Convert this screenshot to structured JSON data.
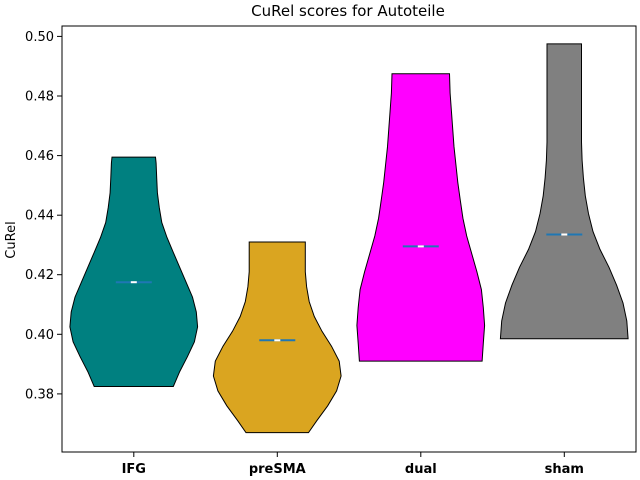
{
  "chart_data": {
    "type": "violin",
    "title": "CuRel scores for Autoteile",
    "xlabel": "",
    "ylabel": "CuRel",
    "ylim": [
      0.3605,
      0.5035
    ],
    "yticks": [
      0.38,
      0.4,
      0.42,
      0.44,
      0.46,
      0.48,
      0.5
    ],
    "ytick_labels": [
      "0.38",
      "0.40",
      "0.42",
      "0.44",
      "0.46",
      "0.48",
      "0.50"
    ],
    "categories": [
      "IFG",
      "preSMA",
      "dual",
      "sham"
    ],
    "grid": false,
    "series": [
      {
        "category": "IFG",
        "color": "#008080",
        "min": 0.3825,
        "max": 0.4595,
        "median": 0.4175,
        "profile": [
          [
            0.3825,
            0.62
          ],
          [
            0.3875,
            0.72
          ],
          [
            0.3925,
            0.84
          ],
          [
            0.3975,
            0.95
          ],
          [
            0.4025,
            1.0
          ],
          [
            0.4075,
            0.98
          ],
          [
            0.4125,
            0.92
          ],
          [
            0.4175,
            0.82
          ],
          [
            0.4225,
            0.72
          ],
          [
            0.4275,
            0.62
          ],
          [
            0.4325,
            0.52
          ],
          [
            0.4375,
            0.44
          ],
          [
            0.4425,
            0.4
          ],
          [
            0.4475,
            0.37
          ],
          [
            0.4525,
            0.36
          ],
          [
            0.4575,
            0.35
          ],
          [
            0.4595,
            0.34
          ]
        ]
      },
      {
        "category": "preSMA",
        "color": "#DAA520",
        "min": 0.367,
        "max": 0.431,
        "median": 0.398,
        "profile": [
          [
            0.367,
            0.49
          ],
          [
            0.371,
            0.62
          ],
          [
            0.376,
            0.79
          ],
          [
            0.381,
            0.93
          ],
          [
            0.386,
            1.0
          ],
          [
            0.391,
            0.97
          ],
          [
            0.396,
            0.85
          ],
          [
            0.401,
            0.7
          ],
          [
            0.406,
            0.58
          ],
          [
            0.411,
            0.5
          ],
          [
            0.416,
            0.46
          ],
          [
            0.421,
            0.44
          ],
          [
            0.426,
            0.44
          ],
          [
            0.431,
            0.44
          ]
        ]
      },
      {
        "category": "dual",
        "color": "#FF00FF",
        "min": 0.391,
        "max": 0.4875,
        "median": 0.4295,
        "profile": [
          [
            0.391,
            0.96
          ],
          [
            0.397,
            0.98
          ],
          [
            0.403,
            1.0
          ],
          [
            0.409,
            0.98
          ],
          [
            0.415,
            0.95
          ],
          [
            0.421,
            0.88
          ],
          [
            0.427,
            0.8
          ],
          [
            0.433,
            0.72
          ],
          [
            0.439,
            0.66
          ],
          [
            0.445,
            0.62
          ],
          [
            0.451,
            0.58
          ],
          [
            0.457,
            0.55
          ],
          [
            0.463,
            0.52
          ],
          [
            0.469,
            0.5
          ],
          [
            0.475,
            0.48
          ],
          [
            0.481,
            0.46
          ],
          [
            0.4875,
            0.45
          ]
        ]
      },
      {
        "category": "sham",
        "color": "#808080",
        "min": 0.3985,
        "max": 0.4975,
        "median": 0.4335,
        "profile": [
          [
            0.3985,
            1.0
          ],
          [
            0.4045,
            0.98
          ],
          [
            0.4105,
            0.92
          ],
          [
            0.4165,
            0.82
          ],
          [
            0.4225,
            0.7
          ],
          [
            0.4285,
            0.56
          ],
          [
            0.4345,
            0.45
          ],
          [
            0.4405,
            0.38
          ],
          [
            0.4465,
            0.33
          ],
          [
            0.4525,
            0.3
          ],
          [
            0.4585,
            0.28
          ],
          [
            0.4645,
            0.27
          ],
          [
            0.4705,
            0.27
          ],
          [
            0.4765,
            0.27
          ],
          [
            0.4825,
            0.27
          ],
          [
            0.4885,
            0.27
          ],
          [
            0.4945,
            0.27
          ],
          [
            0.4975,
            0.27
          ]
        ]
      }
    ]
  }
}
